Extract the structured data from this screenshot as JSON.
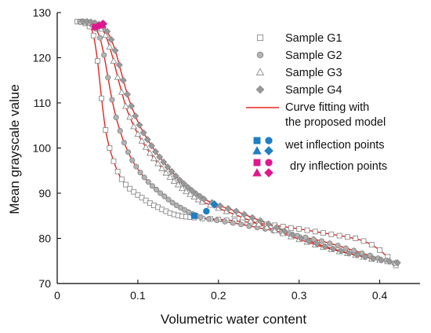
{
  "chart_data": {
    "type": "scatter",
    "title": "",
    "xlabel": "Volumetric water content",
    "ylabel": "Mean grayscale value",
    "xlim": [
      0,
      0.45
    ],
    "ylim": [
      70,
      130
    ],
    "xticks": [
      0,
      0.1,
      0.2,
      0.3,
      0.4
    ],
    "xtick_labels": [
      "0",
      "0.1",
      "0.2",
      "0.3",
      "0.4"
    ],
    "yticks": [
      70,
      80,
      90,
      100,
      110,
      120,
      130
    ],
    "ytick_labels": [
      "70",
      "80",
      "90",
      "100",
      "110",
      "120",
      "130"
    ],
    "grid": false,
    "legend_position": "top-right",
    "series": [
      {
        "name": "Sample G1",
        "marker": "square",
        "color": "#8a8a8a",
        "x": [
          0.025,
          0.03,
          0.035,
          0.04,
          0.045,
          0.05,
          0.055,
          0.06,
          0.065,
          0.07,
          0.075,
          0.08,
          0.085,
          0.09,
          0.095,
          0.1,
          0.105,
          0.11,
          0.115,
          0.12,
          0.125,
          0.13,
          0.135,
          0.14,
          0.145,
          0.15,
          0.155,
          0.16,
          0.165,
          0.17,
          0.18,
          0.19,
          0.2,
          0.21,
          0.22,
          0.23,
          0.24,
          0.25,
          0.26,
          0.27,
          0.28,
          0.29,
          0.3,
          0.31,
          0.32,
          0.33,
          0.34,
          0.35,
          0.36,
          0.37,
          0.38,
          0.39,
          0.4,
          0.41,
          0.42
        ],
        "y": [
          128.0,
          127.9,
          127.6,
          126.9,
          124.9,
          119.3,
          111.0,
          104.0,
          100.0,
          97.1,
          94.8,
          93.1,
          91.9,
          91.0,
          90.3,
          89.6,
          89.0,
          88.4,
          87.8,
          87.3,
          86.9,
          86.4,
          86.0,
          85.6,
          85.3,
          85.1,
          84.9,
          84.8,
          84.7,
          84.6,
          84.4,
          84.3,
          84.2,
          84.0,
          83.9,
          83.7,
          83.5,
          83.3,
          83.1,
          82.9,
          82.6,
          82.3,
          82.1,
          81.8,
          81.5,
          81.2,
          80.9,
          80.6,
          80.3,
          80.0,
          79.4,
          78.6,
          77.4,
          75.9,
          74.0
        ]
      },
      {
        "name": "Sample G2",
        "marker": "circle",
        "color": "#8a8a8a",
        "x": [
          0.028,
          0.033,
          0.038,
          0.043,
          0.048,
          0.053,
          0.058,
          0.063,
          0.068,
          0.073,
          0.078,
          0.083,
          0.088,
          0.093,
          0.098,
          0.103,
          0.108,
          0.113,
          0.118,
          0.123,
          0.128,
          0.133,
          0.138,
          0.143,
          0.148,
          0.153,
          0.158,
          0.163,
          0.168,
          0.173,
          0.178,
          0.188,
          0.198,
          0.208,
          0.218,
          0.228,
          0.238,
          0.248,
          0.258,
          0.268,
          0.278,
          0.288,
          0.298,
          0.308,
          0.318,
          0.328,
          0.338,
          0.348,
          0.358,
          0.368,
          0.378,
          0.388,
          0.398,
          0.408,
          0.418
        ],
        "y": [
          128.0,
          127.9,
          127.7,
          127.3,
          126.4,
          124.4,
          120.6,
          115.6,
          110.7,
          106.8,
          103.8,
          101.2,
          99.1,
          97.3,
          95.9,
          94.6,
          93.5,
          92.5,
          91.6,
          90.8,
          90.0,
          89.3,
          88.6,
          87.9,
          87.3,
          86.8,
          86.3,
          85.8,
          85.4,
          85.0,
          84.7,
          84.3,
          84.0,
          83.7,
          83.4,
          83.1,
          82.7,
          82.4,
          82.1,
          81.7,
          81.4,
          81.0,
          80.6,
          80.2,
          79.8,
          79.4,
          78.9,
          78.4,
          77.8,
          77.3,
          76.7,
          76.2,
          75.6,
          75.1,
          74.5
        ]
      },
      {
        "name": "Sample G3",
        "marker": "triangle",
        "color": "#8a8a8a",
        "x": [
          0.03,
          0.035,
          0.04,
          0.045,
          0.05,
          0.055,
          0.06,
          0.065,
          0.07,
          0.075,
          0.08,
          0.085,
          0.09,
          0.095,
          0.1,
          0.105,
          0.11,
          0.115,
          0.12,
          0.125,
          0.13,
          0.135,
          0.14,
          0.145,
          0.15,
          0.155,
          0.16,
          0.165,
          0.17,
          0.175,
          0.18,
          0.19,
          0.2,
          0.21,
          0.22,
          0.23,
          0.24,
          0.25,
          0.26,
          0.27,
          0.28,
          0.29,
          0.3,
          0.31,
          0.32,
          0.33,
          0.34,
          0.35,
          0.36,
          0.37,
          0.38,
          0.39,
          0.4,
          0.41,
          0.42
        ],
        "y": [
          128.0,
          127.9,
          127.8,
          127.6,
          127.2,
          126.4,
          125.0,
          122.4,
          119.3,
          115.7,
          112.4,
          109.3,
          106.9,
          104.8,
          103.1,
          101.6,
          100.2,
          98.9,
          97.7,
          96.6,
          95.5,
          94.5,
          93.6,
          92.7,
          91.9,
          91.1,
          90.4,
          89.8,
          89.2,
          88.6,
          88.1,
          87.4,
          86.7,
          86.0,
          85.3,
          84.6,
          83.9,
          83.2,
          82.5,
          81.8,
          81.1,
          80.4,
          79.8,
          79.2,
          78.6,
          78.1,
          77.6,
          77.1,
          76.7,
          76.3,
          75.9,
          75.5,
          75.2,
          74.9,
          74.6
        ]
      },
      {
        "name": "Sample G4",
        "marker": "diamond",
        "color": "#8a8a8a",
        "x": [
          0.032,
          0.037,
          0.042,
          0.047,
          0.052,
          0.057,
          0.062,
          0.067,
          0.072,
          0.077,
          0.082,
          0.087,
          0.092,
          0.097,
          0.102,
          0.107,
          0.112,
          0.117,
          0.122,
          0.127,
          0.132,
          0.137,
          0.142,
          0.147,
          0.152,
          0.157,
          0.162,
          0.167,
          0.172,
          0.177,
          0.182,
          0.192,
          0.202,
          0.212,
          0.222,
          0.232,
          0.242,
          0.252,
          0.262,
          0.272,
          0.282,
          0.292,
          0.302,
          0.312,
          0.322,
          0.332,
          0.342,
          0.352,
          0.362,
          0.372,
          0.382,
          0.392,
          0.402,
          0.412,
          0.422
        ],
        "y": [
          128.0,
          128.0,
          127.9,
          127.7,
          127.4,
          126.8,
          125.8,
          124.0,
          121.6,
          118.4,
          115.0,
          111.9,
          109.3,
          107.1,
          105.1,
          103.4,
          101.9,
          100.5,
          99.2,
          98.0,
          96.9,
          95.8,
          94.8,
          93.8,
          92.9,
          92.1,
          91.3,
          90.6,
          89.9,
          89.3,
          88.7,
          87.9,
          87.2,
          86.6,
          86.0,
          85.3,
          84.6,
          83.9,
          83.2,
          82.4,
          81.6,
          80.8,
          80.1,
          79.4,
          78.8,
          78.2,
          77.7,
          77.2,
          76.7,
          76.3,
          75.9,
          75.5,
          75.2,
          74.9,
          74.6
        ]
      }
    ],
    "fit_curves": [
      {
        "series": "Sample G1",
        "x": [
          0.023,
          0.03,
          0.04,
          0.045,
          0.05,
          0.055,
          0.06,
          0.065,
          0.07,
          0.075,
          0.08,
          0.09,
          0.1,
          0.11,
          0.12,
          0.13,
          0.14,
          0.15,
          0.16,
          0.17,
          0.18,
          0.2,
          0.22,
          0.24,
          0.26,
          0.28,
          0.3,
          0.32,
          0.34,
          0.36,
          0.38,
          0.4,
          0.42
        ],
        "y": [
          128.0,
          127.9,
          126.9,
          124.9,
          119.3,
          111.0,
          104.0,
          100.0,
          97.1,
          94.8,
          93.1,
          91.0,
          89.6,
          88.4,
          87.3,
          86.4,
          85.6,
          85.1,
          84.8,
          84.6,
          84.4,
          84.2,
          83.9,
          83.5,
          83.1,
          82.6,
          82.1,
          81.5,
          80.9,
          80.3,
          79.4,
          77.4,
          74.0
        ]
      },
      {
        "series": "Sample G2",
        "x": [
          0.025,
          0.033,
          0.043,
          0.048,
          0.053,
          0.058,
          0.063,
          0.068,
          0.073,
          0.078,
          0.083,
          0.093,
          0.103,
          0.113,
          0.123,
          0.133,
          0.143,
          0.153,
          0.163,
          0.173,
          0.188,
          0.208,
          0.228,
          0.248,
          0.268,
          0.288,
          0.308,
          0.328,
          0.348,
          0.368,
          0.388,
          0.408,
          0.42
        ],
        "y": [
          128.0,
          127.9,
          127.3,
          126.4,
          124.4,
          120.6,
          115.6,
          110.7,
          106.8,
          103.8,
          101.2,
          97.3,
          94.6,
          92.5,
          90.8,
          89.3,
          87.9,
          86.8,
          85.8,
          85.0,
          84.3,
          83.7,
          83.1,
          82.4,
          81.7,
          81.0,
          80.2,
          79.4,
          78.4,
          77.3,
          76.2,
          75.1,
          74.4
        ]
      },
      {
        "series": "Sample G3",
        "x": [
          0.027,
          0.035,
          0.045,
          0.05,
          0.055,
          0.06,
          0.065,
          0.07,
          0.075,
          0.08,
          0.085,
          0.09,
          0.1,
          0.11,
          0.12,
          0.13,
          0.14,
          0.15,
          0.16,
          0.17,
          0.18,
          0.2,
          0.22,
          0.24,
          0.26,
          0.28,
          0.3,
          0.32,
          0.34,
          0.36,
          0.38,
          0.4,
          0.42
        ],
        "y": [
          128.0,
          127.9,
          127.6,
          127.2,
          126.4,
          125.0,
          122.4,
          119.3,
          115.7,
          112.4,
          109.3,
          106.9,
          103.1,
          100.2,
          97.7,
          95.5,
          93.6,
          91.9,
          90.4,
          89.2,
          88.1,
          86.7,
          85.3,
          83.9,
          82.5,
          81.1,
          79.8,
          78.6,
          77.6,
          76.7,
          75.9,
          75.2,
          74.6
        ]
      },
      {
        "series": "Sample G4",
        "x": [
          0.03,
          0.037,
          0.047,
          0.052,
          0.057,
          0.062,
          0.067,
          0.072,
          0.077,
          0.082,
          0.087,
          0.092,
          0.102,
          0.112,
          0.122,
          0.132,
          0.142,
          0.152,
          0.162,
          0.172,
          0.182,
          0.202,
          0.222,
          0.242,
          0.262,
          0.282,
          0.302,
          0.322,
          0.342,
          0.362,
          0.382,
          0.402,
          0.422
        ],
        "y": [
          128.0,
          128.0,
          127.7,
          127.4,
          126.8,
          125.8,
          124.0,
          121.6,
          118.4,
          115.0,
          111.9,
          109.3,
          105.1,
          101.9,
          99.2,
          96.9,
          94.8,
          92.9,
          91.3,
          89.9,
          88.7,
          87.2,
          86.0,
          84.6,
          83.2,
          81.6,
          80.1,
          78.8,
          77.7,
          76.7,
          75.9,
          75.2,
          74.6
        ]
      }
    ],
    "wet_inflection_points": [
      {
        "series": "Sample G1",
        "marker": "square",
        "x": 0.17,
        "y": 85.0
      },
      {
        "series": "Sample G2",
        "marker": "circle",
        "x": 0.185,
        "y": 86.0
      },
      {
        "series": "Sample G4",
        "marker": "diamond",
        "x": 0.195,
        "y": 87.5
      }
    ],
    "dry_inflection_points": [
      {
        "series": "Sample G1",
        "marker": "square",
        "x": 0.047,
        "y": 126.8
      },
      {
        "series": "Sample G2",
        "marker": "circle",
        "x": 0.052,
        "y": 127.1
      },
      {
        "series": "Sample G3",
        "marker": "triangle",
        "x": 0.055,
        "y": 127.3
      },
      {
        "series": "Sample G4",
        "marker": "diamond",
        "x": 0.057,
        "y": 127.5
      }
    ],
    "legend": {
      "entries": [
        {
          "label": "Sample G1",
          "marker": "square"
        },
        {
          "label": "Sample G2",
          "marker": "circle"
        },
        {
          "label": "Sample G3",
          "marker": "triangle"
        },
        {
          "label": "Sample G4",
          "marker": "diamond"
        }
      ],
      "fit_line_label": [
        "Curve fitting with",
        "the proposed model"
      ],
      "wet_label": "wet inflection points",
      "dry_label": "dry inflection points"
    },
    "colors": {
      "fit_line": "#e8231d",
      "wet_marker": "#1f7fc4",
      "dry_marker": "#e0178f",
      "data_marker_stroke": "#8a8a8a",
      "data_marker_fill_circle": "#b3b3b3",
      "data_marker_fill_diamond": "#9a9a9a",
      "axis": "#000000"
    }
  }
}
